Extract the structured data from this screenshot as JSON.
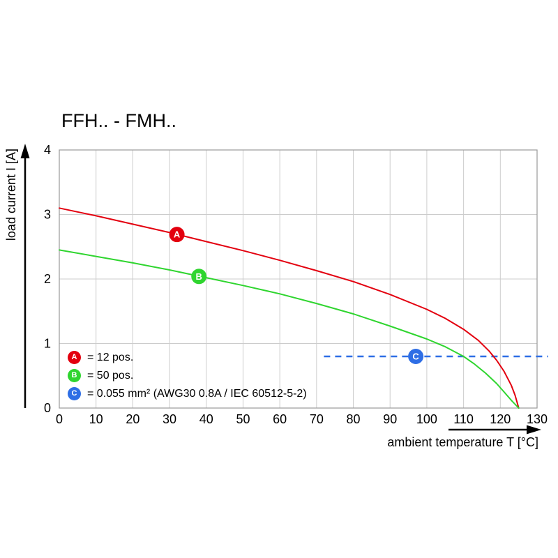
{
  "chart_data": {
    "type": "line",
    "title": "FFH.. - FMH..",
    "xlabel": "ambient temperature T [°C]",
    "ylabel": "load current I [A]",
    "xlim": [
      0,
      130
    ],
    "ylim": [
      0,
      4
    ],
    "x_ticks": [
      0,
      10,
      20,
      30,
      40,
      50,
      60,
      70,
      80,
      90,
      100,
      110,
      120,
      130
    ],
    "y_ticks": [
      0,
      1,
      2,
      3,
      4
    ],
    "grid": true,
    "series": [
      {
        "name": "A",
        "description": "12 pos.",
        "color": "#e3000f",
        "x": [
          0,
          10,
          20,
          30,
          40,
          50,
          60,
          70,
          80,
          90,
          100,
          105,
          110,
          114,
          117,
          119,
          121,
          123,
          124,
          125
        ],
        "y": [
          3.1,
          2.98,
          2.85,
          2.72,
          2.58,
          2.44,
          2.29,
          2.13,
          1.96,
          1.76,
          1.53,
          1.39,
          1.22,
          1.05,
          0.88,
          0.74,
          0.57,
          0.35,
          0.2,
          0
        ]
      },
      {
        "name": "B",
        "description": "50 pos.",
        "color": "#2fd52f",
        "x": [
          0,
          10,
          20,
          30,
          40,
          50,
          60,
          70,
          80,
          90,
          100,
          105,
          110,
          113,
          116,
          119,
          121,
          123,
          124,
          125
        ],
        "y": [
          2.45,
          2.35,
          2.25,
          2.14,
          2.02,
          1.9,
          1.77,
          1.62,
          1.46,
          1.27,
          1.07,
          0.95,
          0.8,
          0.68,
          0.54,
          0.38,
          0.25,
          0.12,
          0.06,
          0
        ]
      }
    ],
    "limit_line": {
      "name": "C",
      "description": "0.055 mm² (AWG30 0.8A / IEC 60512-5-2)",
      "color": "#2e6ee5",
      "y": 0.8,
      "x_start": 72,
      "x_end": 133,
      "style": "dashed"
    },
    "markers": [
      {
        "label": "A",
        "x": 32,
        "y": 2.69,
        "color": "#e3000f"
      },
      {
        "label": "B",
        "x": 38,
        "y": 2.04,
        "color": "#2fd52f"
      },
      {
        "label": "C",
        "x": 97,
        "y": 0.8,
        "color": "#2e6ee5"
      }
    ],
    "legend": {
      "position": "inside-bottom-left",
      "items": [
        {
          "key": "A",
          "label": "= 12 pos.",
          "color": "#e3000f"
        },
        {
          "key": "B",
          "label": "= 50 pos.",
          "color": "#2fd52f"
        },
        {
          "key": "C",
          "label": "= 0.055 mm² (AWG30 0.8A / IEC 60512-5-2)",
          "color": "#2e6ee5"
        }
      ]
    }
  }
}
